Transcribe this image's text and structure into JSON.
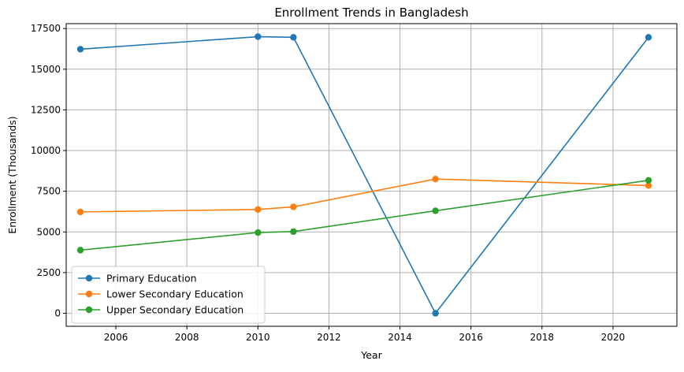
{
  "chart_data": {
    "type": "line",
    "title": "Enrollment Trends in Bangladesh",
    "xlabel": "Year",
    "ylabel": "Enrollment (Thousands)",
    "xlim": [
      2004.6,
      2021.8
    ],
    "ylim": [
      -800,
      17800
    ],
    "xticks": [
      2006,
      2008,
      2010,
      2012,
      2014,
      2016,
      2018,
      2020
    ],
    "yticks": [
      0,
      2500,
      5000,
      7500,
      10000,
      12500,
      15000,
      17500
    ],
    "grid": true,
    "legend_position": "lower-left",
    "series": [
      {
        "name": "Primary Education",
        "color": "#1f77b4",
        "x": [
          2005,
          2010,
          2011,
          2015,
          2021
        ],
        "y": [
          16230,
          17000,
          16960,
          0,
          16960
        ]
      },
      {
        "name": "Lower Secondary Education",
        "color": "#ff7f0e",
        "x": [
          2005,
          2010,
          2011,
          2015,
          2021
        ],
        "y": [
          6230,
          6380,
          6540,
          8250,
          7850
        ]
      },
      {
        "name": "Upper Secondary Education",
        "color": "#2ca02c",
        "x": [
          2005,
          2010,
          2011,
          2015,
          2021
        ],
        "y": [
          3880,
          4960,
          5020,
          6300,
          8170
        ]
      }
    ]
  }
}
